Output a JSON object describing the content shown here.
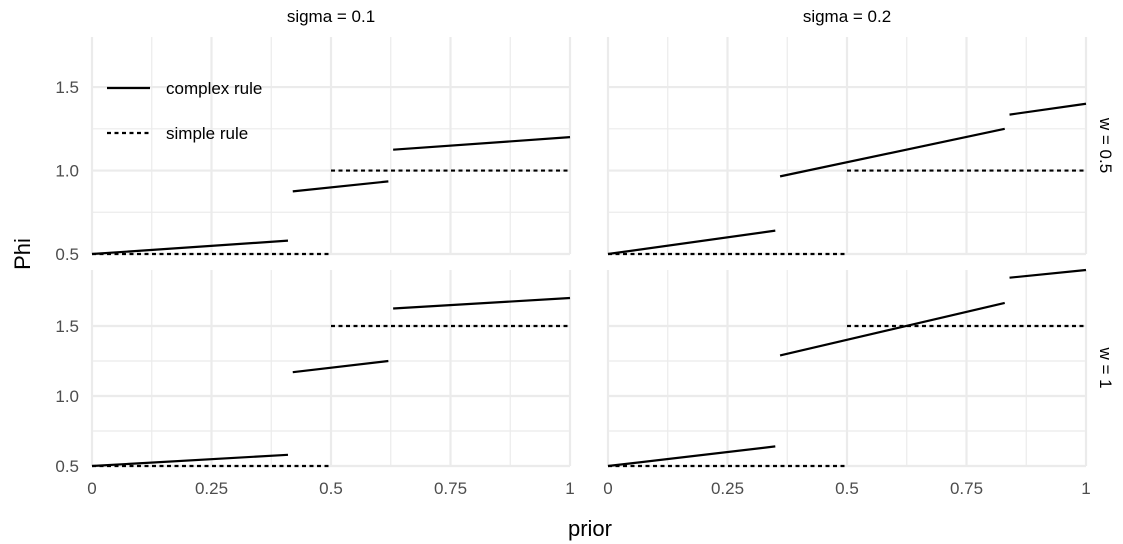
{
  "chart_data": {
    "type": "line",
    "xlabel": "prior",
    "ylabel": "Phi",
    "xlim": [
      0,
      1
    ],
    "x_ticks": [
      "0",
      "0.25",
      "0.5",
      "0.75",
      "1"
    ],
    "x_tick_values": [
      0,
      0.25,
      0.5,
      0.75,
      1
    ],
    "grid": true,
    "legend_placement": "top-left",
    "legend": [
      {
        "label": "complex rule",
        "style": "solid"
      },
      {
        "label": "simple rule",
        "style": "dashed"
      }
    ],
    "colors": {
      "line": "#000000",
      "grid": "#ebebeb",
      "text": "#4d4d4d",
      "title": "#000000"
    },
    "column_strips": [
      "sigma = 0.1",
      "sigma = 0.2"
    ],
    "row_strips": [
      "w = 0.5",
      "w = 1"
    ],
    "panels": [
      {
        "sigma": "sigma = 0.1",
        "w": "w = 0.5",
        "ylim": [
          0.5,
          1.8
        ],
        "y_ticks": [
          "0.5",
          "1.0",
          "1.5"
        ],
        "y_tick_values": [
          0.5,
          1.0,
          1.5
        ],
        "series": [
          {
            "name": "complex rule",
            "segments": [
              [
                [
                  0,
                  0.5
                ],
                [
                  0.41,
                  0.58
                ]
              ],
              [
                [
                  0.42,
                  0.875
                ],
                [
                  0.62,
                  0.935
                ]
              ],
              [
                [
                  0.63,
                  1.125
                ],
                [
                  1,
                  1.2
                ]
              ]
            ]
          },
          {
            "name": "simple rule",
            "segments": [
              [
                [
                  0,
                  0.5
                ],
                [
                  0.5,
                  0.5
                ]
              ],
              [
                [
                  0.5,
                  1.0
                ],
                [
                  1,
                  1.0
                ]
              ]
            ]
          }
        ]
      },
      {
        "sigma": "sigma = 0.2",
        "w": "w = 0.5",
        "ylim": [
          0.5,
          1.8
        ],
        "y_ticks": [
          "0.5",
          "1.0",
          "1.5"
        ],
        "y_tick_values": [
          0.5,
          1.0,
          1.5
        ],
        "series": [
          {
            "name": "complex rule",
            "segments": [
              [
                [
                  0,
                  0.5
                ],
                [
                  0.35,
                  0.64
                ]
              ],
              [
                [
                  0.36,
                  0.965
                ],
                [
                  0.83,
                  1.25
                ]
              ],
              [
                [
                  0.84,
                  1.335
                ],
                [
                  1,
                  1.4
                ]
              ]
            ]
          },
          {
            "name": "simple rule",
            "segments": [
              [
                [
                  0,
                  0.5
                ],
                [
                  0.5,
                  0.5
                ]
              ],
              [
                [
                  0.5,
                  1.0
                ],
                [
                  1,
                  1.0
                ]
              ]
            ]
          }
        ]
      },
      {
        "sigma": "sigma = 0.1",
        "w": "w = 1",
        "ylim": [
          0.5,
          1.9
        ],
        "y_ticks": [
          "0.5",
          "1.0",
          "1.5"
        ],
        "y_tick_values": [
          0.5,
          1.0,
          1.5
        ],
        "series": [
          {
            "name": "complex rule",
            "segments": [
              [
                [
                  0,
                  0.5
                ],
                [
                  0.41,
                  0.58
                ]
              ],
              [
                [
                  0.42,
                  1.17
                ],
                [
                  0.62,
                  1.25
                ]
              ],
              [
                [
                  0.63,
                  1.625
                ],
                [
                  1,
                  1.7
                ]
              ]
            ]
          },
          {
            "name": "simple rule",
            "segments": [
              [
                [
                  0,
                  0.5
                ],
                [
                  0.5,
                  0.5
                ]
              ],
              [
                [
                  0.5,
                  1.5
                ],
                [
                  1,
                  1.5
                ]
              ]
            ]
          }
        ]
      },
      {
        "sigma": "sigma = 0.2",
        "w": "w = 1",
        "ylim": [
          0.5,
          1.9
        ],
        "y_ticks": [
          "0.5",
          "1.0",
          "1.5"
        ],
        "y_tick_values": [
          0.5,
          1.0,
          1.5
        ],
        "series": [
          {
            "name": "complex rule",
            "segments": [
              [
                [
                  0,
                  0.5
                ],
                [
                  0.35,
                  0.64
                ]
              ],
              [
                [
                  0.36,
                  1.29
                ],
                [
                  0.83,
                  1.665
                ]
              ],
              [
                [
                  0.84,
                  1.845
                ],
                [
                  1,
                  1.9
                ]
              ]
            ]
          },
          {
            "name": "simple rule",
            "segments": [
              [
                [
                  0,
                  0.5
                ],
                [
                  0.5,
                  0.5
                ]
              ],
              [
                [
                  0.5,
                  1.5
                ],
                [
                  1,
                  1.5
                ]
              ]
            ]
          }
        ]
      }
    ]
  }
}
